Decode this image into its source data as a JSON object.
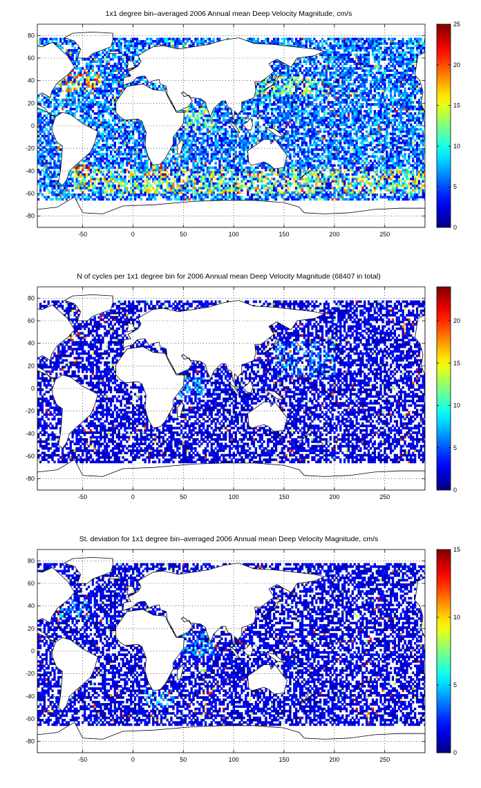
{
  "figure": {
    "panel_count": 3
  },
  "colormap": "jet",
  "chart_data": [
    {
      "type": "heatmap",
      "title": "1x1 degree bin–averaged 2006 Annual mean Deep Velocity Magnitude, cm/s",
      "xlabel": "",
      "ylabel": "",
      "xlim": [
        -95,
        290
      ],
      "ylim": [
        -90,
        90
      ],
      "x_ticks": [
        -50,
        0,
        50,
        100,
        150,
        200,
        250
      ],
      "y_ticks": [
        -80,
        -60,
        -40,
        -20,
        0,
        20,
        40,
        60,
        80
      ],
      "grid": true,
      "colorbar": {
        "min": 0,
        "max": 25,
        "ticks": [
          0,
          5,
          10,
          15,
          20,
          25
        ]
      },
      "typical_level": 0.28,
      "hot_bands": [
        {
          "x": [
            -75,
            -35
          ],
          "y": [
            30,
            45
          ],
          "level": 0.75
        },
        {
          "x": [
            120,
            190
          ],
          "y": [
            28,
            42
          ],
          "level": 0.6
        },
        {
          "x": [
            -60,
            290
          ],
          "y": [
            -60,
            -40
          ],
          "level": 0.65
        },
        {
          "x": [
            15,
            35
          ],
          "y": [
            -45,
            -35
          ],
          "level": 0.85
        },
        {
          "x": [
            -60,
            -45
          ],
          "y": [
            -45,
            -35
          ],
          "level": 0.9
        },
        {
          "x": [
            40,
            80
          ],
          "y": [
            -5,
            15
          ],
          "level": 0.55
        }
      ]
    },
    {
      "type": "heatmap",
      "title": "N of cycles per 1x1 degree bin for 2006 Annual mean Deep Velocity Magnitude (68407 in total)",
      "xlabel": "",
      "ylabel": "",
      "xlim": [
        -95,
        290
      ],
      "ylim": [
        -90,
        90
      ],
      "x_ticks": [
        -50,
        0,
        50,
        100,
        150,
        200,
        250
      ],
      "y_ticks": [
        -80,
        -60,
        -40,
        -20,
        0,
        20,
        40,
        60,
        80
      ],
      "grid": true,
      "colorbar": {
        "min": 0,
        "max": 24,
        "ticks": [
          0,
          5,
          10,
          15,
          20
        ]
      },
      "total_cycles": 68407,
      "typical_level": 0.12,
      "hot_bands": [
        {
          "x": [
            -60,
            -50
          ],
          "y": [
            -25,
            -15
          ],
          "level": 0.6
        },
        {
          "x": [
            40,
            70
          ],
          "y": [
            -10,
            10
          ],
          "level": 0.35
        },
        {
          "x": [
            140,
            200
          ],
          "y": [
            10,
            40
          ],
          "level": 0.3
        }
      ]
    },
    {
      "type": "heatmap",
      "title": "St. deviation for 1x1 degree bin–averaged 2006 Annual mean Deep Velocity Magnitude, cm/s",
      "xlabel": "",
      "ylabel": "",
      "xlim": [
        -95,
        290
      ],
      "ylim": [
        -90,
        90
      ],
      "x_ticks": [
        -50,
        0,
        50,
        100,
        150,
        200,
        250
      ],
      "y_ticks": [
        -80,
        -60,
        -40,
        -20,
        0,
        20,
        40,
        60,
        80
      ],
      "grid": true,
      "colorbar": {
        "min": 0,
        "max": 15,
        "ticks": [
          0,
          5,
          10,
          15
        ]
      },
      "typical_level": 0.12,
      "hot_bands": [
        {
          "x": [
            -75,
            -45
          ],
          "y": [
            30,
            45
          ],
          "level": 0.35
        },
        {
          "x": [
            10,
            40
          ],
          "y": [
            -50,
            -35
          ],
          "level": 0.35
        },
        {
          "x": [
            40,
            80
          ],
          "y": [
            -5,
            15
          ],
          "level": 0.3
        }
      ]
    }
  ],
  "land": [
    {
      "name": "north-america",
      "pts": [
        [
          -165,
          68
        ],
        [
          -140,
          70
        ],
        [
          -110,
          72
        ],
        [
          -90,
          70
        ],
        [
          -80,
          74
        ],
        [
          -65,
          62
        ],
        [
          -58,
          52
        ],
        [
          -65,
          45
        ],
        [
          -75,
          38
        ],
        [
          -81,
          30
        ],
        [
          -82,
          25
        ],
        [
          -90,
          29
        ],
        [
          -97,
          26
        ],
        [
          -97,
          20
        ],
        [
          -88,
          16
        ],
        [
          -83,
          10
        ],
        [
          -77,
          8
        ],
        [
          -85,
          12
        ],
        [
          -95,
          16
        ],
        [
          -105,
          22
        ],
        [
          -112,
          30
        ],
        [
          -118,
          34
        ],
        [
          -124,
          42
        ],
        [
          -124,
          48
        ],
        [
          -130,
          55
        ],
        [
          -140,
          60
        ],
        [
          -150,
          60
        ],
        [
          -165,
          62
        ]
      ]
    },
    {
      "name": "south-america",
      "pts": [
        [
          -77,
          8
        ],
        [
          -70,
          12
        ],
        [
          -62,
          10
        ],
        [
          -50,
          2
        ],
        [
          -35,
          -5
        ],
        [
          -38,
          -15
        ],
        [
          -42,
          -23
        ],
        [
          -48,
          -28
        ],
        [
          -57,
          -35
        ],
        [
          -63,
          -40
        ],
        [
          -66,
          -48
        ],
        [
          -70,
          -53
        ],
        [
          -74,
          -50
        ],
        [
          -72,
          -40
        ],
        [
          -71,
          -30
        ],
        [
          -70,
          -18
        ],
        [
          -76,
          -14
        ],
        [
          -80,
          -5
        ],
        [
          -80,
          0
        ],
        [
          -78,
          5
        ]
      ]
    },
    {
      "name": "greenland",
      "pts": [
        [
          -55,
          60
        ],
        [
          -45,
          60
        ],
        [
          -40,
          64
        ],
        [
          -22,
          70
        ],
        [
          -20,
          76
        ],
        [
          -20,
          82
        ],
        [
          -40,
          83
        ],
        [
          -60,
          82
        ],
        [
          -68,
          78
        ],
        [
          -58,
          75
        ],
        [
          -52,
          68
        ]
      ]
    },
    {
      "name": "africa",
      "pts": [
        [
          -17,
          15
        ],
        [
          -17,
          21
        ],
        [
          -10,
          30
        ],
        [
          -6,
          35
        ],
        [
          10,
          37
        ],
        [
          20,
          32
        ],
        [
          32,
          31
        ],
        [
          35,
          25
        ],
        [
          43,
          12
        ],
        [
          51,
          12
        ],
        [
          50,
          2
        ],
        [
          40,
          -10
        ],
        [
          40,
          -16
        ],
        [
          35,
          -24
        ],
        [
          32,
          -29
        ],
        [
          27,
          -34
        ],
        [
          20,
          -35
        ],
        [
          18,
          -32
        ],
        [
          15,
          -27
        ],
        [
          12,
          -17
        ],
        [
          13,
          -6
        ],
        [
          9,
          4
        ],
        [
          5,
          6
        ],
        [
          -8,
          5
        ],
        [
          -13,
          8
        ],
        [
          -17,
          12
        ]
      ]
    },
    {
      "name": "eurasia",
      "pts": [
        [
          -10,
          36
        ],
        [
          -9,
          43
        ],
        [
          -2,
          44
        ],
        [
          -5,
          48
        ],
        [
          0,
          50
        ],
        [
          5,
          53
        ],
        [
          8,
          57
        ],
        [
          5,
          62
        ],
        [
          12,
          66
        ],
        [
          20,
          70
        ],
        [
          30,
          71
        ],
        [
          45,
          68
        ],
        [
          60,
          70
        ],
        [
          75,
          72
        ],
        [
          90,
          76
        ],
        [
          105,
          78
        ],
        [
          120,
          73
        ],
        [
          140,
          72
        ],
        [
          160,
          70
        ],
        [
          180,
          68
        ],
        [
          190,
          66
        ],
        [
          180,
          62
        ],
        [
          163,
          60
        ],
        [
          157,
          52
        ],
        [
          143,
          59
        ],
        [
          135,
          55
        ],
        [
          140,
          48
        ],
        [
          133,
          43
        ],
        [
          127,
          39
        ],
        [
          121,
          39
        ],
        [
          122,
          31
        ],
        [
          120,
          25
        ],
        [
          112,
          22
        ],
        [
          108,
          21
        ],
        [
          108,
          14
        ],
        [
          104,
          10
        ],
        [
          101,
          13
        ],
        [
          100,
          6
        ],
        [
          104,
          1
        ],
        [
          99,
          7
        ],
        [
          98,
          15
        ],
        [
          94,
          17
        ],
        [
          92,
          22
        ],
        [
          88,
          22
        ],
        [
          80,
          15
        ],
        [
          77,
          8
        ],
        [
          73,
          17
        ],
        [
          72,
          21
        ],
        [
          67,
          24
        ],
        [
          57,
          25
        ],
        [
          56,
          27
        ],
        [
          51,
          26
        ],
        [
          48,
          29
        ],
        [
          50,
          30
        ],
        [
          56,
          26
        ],
        [
          59,
          22
        ],
        [
          55,
          17
        ],
        [
          45,
          13
        ],
        [
          43,
          13
        ],
        [
          39,
          20
        ],
        [
          34,
          28
        ],
        [
          33,
          35
        ],
        [
          27,
          37
        ],
        [
          26,
          41
        ],
        [
          20,
          40
        ],
        [
          16,
          38
        ],
        [
          12,
          44
        ],
        [
          9,
          44
        ],
        [
          4,
          43
        ],
        [
          0,
          39
        ]
      ]
    },
    {
      "name": "madagascar",
      "pts": [
        [
          44,
          -25
        ],
        [
          47,
          -25
        ],
        [
          50,
          -15
        ],
        [
          49,
          -12
        ],
        [
          44,
          -17
        ]
      ]
    },
    {
      "name": "australia",
      "pts": [
        [
          114,
          -22
        ],
        [
          122,
          -17
        ],
        [
          130,
          -12
        ],
        [
          136,
          -12
        ],
        [
          137,
          -16
        ],
        [
          141,
          -12
        ],
        [
          146,
          -18
        ],
        [
          153,
          -26
        ],
        [
          150,
          -37
        ],
        [
          140,
          -38
        ],
        [
          135,
          -34
        ],
        [
          130,
          -32
        ],
        [
          118,
          -35
        ],
        [
          115,
          -33
        ]
      ]
    },
    {
      "name": "antarctica",
      "pts": [
        [
          -95,
          -74
        ],
        [
          -75,
          -72
        ],
        [
          -62,
          -65
        ],
        [
          -58,
          -63
        ],
        [
          -50,
          -77
        ],
        [
          -30,
          -78
        ],
        [
          -10,
          -71
        ],
        [
          20,
          -70
        ],
        [
          60,
          -67
        ],
        [
          90,
          -66
        ],
        [
          120,
          -66
        ],
        [
          150,
          -68
        ],
        [
          165,
          -72
        ],
        [
          170,
          -77
        ],
        [
          190,
          -78
        ],
        [
          215,
          -77
        ],
        [
          240,
          -74
        ],
        [
          265,
          -73
        ],
        [
          290,
          -73
        ],
        [
          290,
          -90
        ],
        [
          -95,
          -90
        ]
      ]
    },
    {
      "name": "uk",
      "pts": [
        [
          -6,
          50
        ],
        [
          2,
          52
        ],
        [
          0,
          57
        ],
        [
          -5,
          58
        ],
        [
          -5,
          54
        ]
      ]
    },
    {
      "name": "japan",
      "pts": [
        [
          130,
          31
        ],
        [
          135,
          34
        ],
        [
          141,
          38
        ],
        [
          145,
          44
        ],
        [
          142,
          43
        ],
        [
          139,
          36
        ],
        [
          132,
          33
        ]
      ]
    },
    {
      "name": "borneo",
      "pts": [
        [
          109,
          1
        ],
        [
          113,
          -3
        ],
        [
          117,
          -4
        ],
        [
          119,
          1
        ],
        [
          117,
          7
        ],
        [
          113,
          3
        ]
      ]
    },
    {
      "name": "sumatra",
      "pts": [
        [
          95,
          5
        ],
        [
          101,
          1
        ],
        [
          106,
          -6
        ],
        [
          103,
          -5
        ],
        [
          97,
          2
        ]
      ]
    },
    {
      "name": "new-guinea",
      "pts": [
        [
          131,
          -1
        ],
        [
          141,
          -3
        ],
        [
          150,
          -10
        ],
        [
          143,
          -9
        ],
        [
          137,
          -5
        ]
      ]
    },
    {
      "name": "new-zealand",
      "pts": [
        [
          166,
          -46
        ],
        [
          174,
          -41
        ],
        [
          178,
          -38
        ],
        [
          175,
          -37
        ],
        [
          172,
          -41
        ],
        [
          168,
          -46
        ]
      ]
    },
    {
      "name": "iceland",
      "pts": [
        [
          -24,
          64
        ],
        [
          -14,
          64
        ],
        [
          -14,
          66
        ],
        [
          -22,
          66
        ]
      ]
    },
    {
      "name": "europe-right-wrap",
      "pts": [
        [
          290,
          55
        ],
        [
          290,
          62
        ],
        [
          285,
          58
        ]
      ]
    },
    {
      "name": "americas-right-wrap",
      "pts": [
        [
          290,
          0
        ],
        [
          290,
          65
        ],
        [
          283,
          62
        ],
        [
          280,
          45
        ],
        [
          285,
          40
        ],
        [
          288,
          30
        ],
        [
          286,
          20
        ],
        [
          290,
          12
        ]
      ]
    }
  ]
}
